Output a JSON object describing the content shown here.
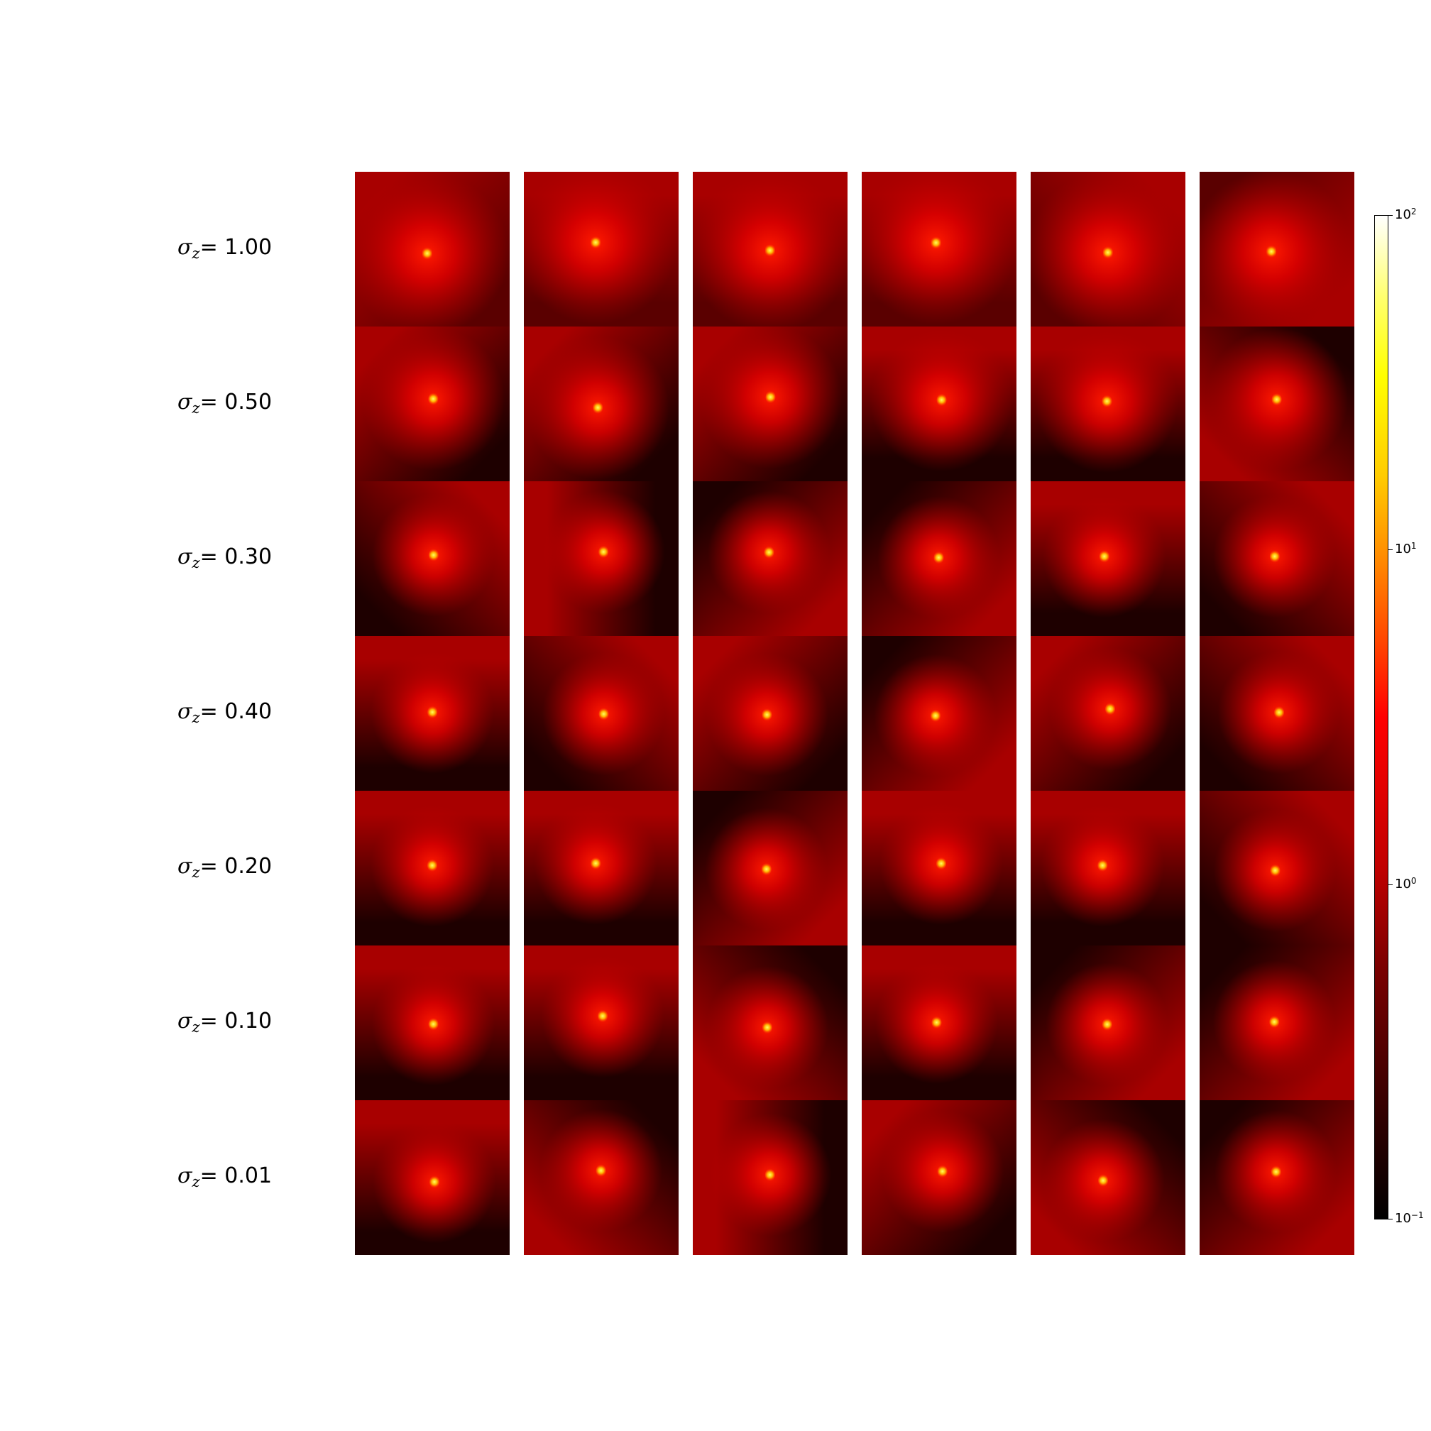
{
  "figure": {
    "row_labels": [
      {
        "symbol": "σ",
        "subscript": "z",
        "value": "= 1.00"
      },
      {
        "symbol": "σ",
        "subscript": "z",
        "value": "= 0.50"
      },
      {
        "symbol": "σ",
        "subscript": "z",
        "value": "= 0.30"
      },
      {
        "symbol": "σ",
        "subscript": "z",
        "value": "= 0.40"
      },
      {
        "symbol": "σ",
        "subscript": "z",
        "value": "= 0.20"
      },
      {
        "symbol": "σ",
        "subscript": "z",
        "value": "= 0.10"
      },
      {
        "symbol": "σ",
        "subscript": "z",
        "value": "= 0.01"
      }
    ],
    "n_columns": 6,
    "colormap": "hot",
    "colorbar": {
      "scale": "log",
      "range": [
        0.1,
        100
      ],
      "ticks": [
        {
          "base": "10",
          "exp": "2"
        },
        {
          "base": "10",
          "exp": "1"
        },
        {
          "base": "10",
          "exp": "0"
        },
        {
          "base": "10",
          "exp": "−1"
        }
      ]
    }
  }
}
